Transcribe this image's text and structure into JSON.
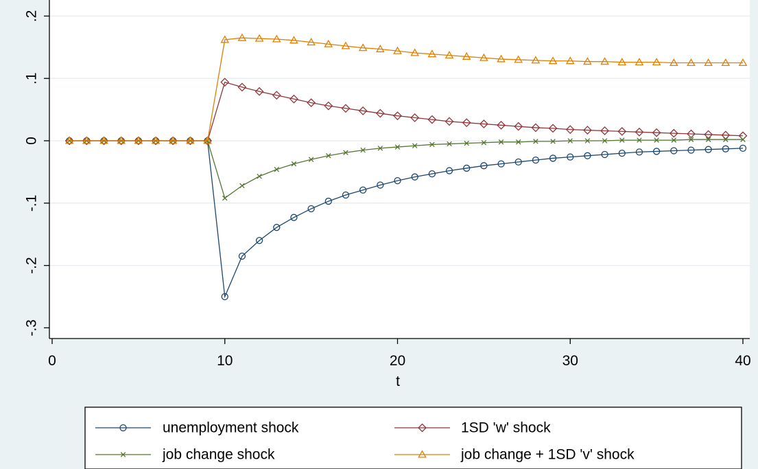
{
  "chart_data": {
    "type": "line",
    "title": "",
    "xlabel": "t",
    "ylabel": "",
    "xlim": [
      0,
      41
    ],
    "ylim": [
      -0.3,
      0.2
    ],
    "xticks": [
      0,
      10,
      20,
      30,
      40
    ],
    "xtick_labels": [
      "0",
      "10",
      "20",
      "30",
      "40"
    ],
    "yticks": [
      -0.3,
      -0.2,
      -0.1,
      0,
      0.1,
      0.2
    ],
    "ytick_labels": [
      "-.3",
      "-.2",
      "-.1",
      "0",
      ".1",
      ".2"
    ],
    "grid": "horizontal",
    "legend_position": "bottom",
    "x": [
      1,
      2,
      3,
      4,
      5,
      6,
      7,
      8,
      9,
      10,
      11,
      12,
      13,
      14,
      15,
      16,
      17,
      18,
      19,
      20,
      21,
      22,
      23,
      24,
      25,
      26,
      27,
      28,
      29,
      30,
      31,
      32,
      33,
      34,
      35,
      36,
      37,
      38,
      39,
      40
    ],
    "series": [
      {
        "name": "unemployment shock",
        "color": "#1a476f",
        "marker": "circle",
        "values": [
          0,
          0,
          0,
          0,
          0,
          0,
          0,
          0,
          0,
          -0.25,
          -0.185,
          -0.16,
          -0.139,
          -0.123,
          -0.109,
          -0.097,
          -0.087,
          -0.079,
          -0.071,
          -0.064,
          -0.058,
          -0.053,
          -0.048,
          -0.044,
          -0.04,
          -0.037,
          -0.034,
          -0.031,
          -0.028,
          -0.026,
          -0.024,
          -0.022,
          -0.02,
          -0.018,
          -0.017,
          -0.016,
          -0.015,
          -0.014,
          -0.013,
          -0.012
        ]
      },
      {
        "name": "1SD 'w' shock",
        "color": "#90353b",
        "marker": "diamond",
        "values": [
          0,
          0,
          0,
          0,
          0,
          0,
          0,
          0,
          0,
          0.094,
          0.086,
          0.079,
          0.073,
          0.067,
          0.061,
          0.056,
          0.052,
          0.048,
          0.044,
          0.04,
          0.037,
          0.034,
          0.031,
          0.029,
          0.027,
          0.025,
          0.023,
          0.021,
          0.02,
          0.018,
          0.017,
          0.016,
          0.015,
          0.014,
          0.013,
          0.012,
          0.011,
          0.01,
          0.009,
          0.008
        ]
      },
      {
        "name": "job change shock",
        "color": "#55752f",
        "marker": "x",
        "values": [
          0,
          0,
          0,
          0,
          0,
          0,
          0,
          0,
          0,
          -0.092,
          -0.072,
          -0.057,
          -0.046,
          -0.037,
          -0.03,
          -0.024,
          -0.019,
          -0.015,
          -0.012,
          -0.01,
          -0.008,
          -0.006,
          -0.005,
          -0.004,
          -0.003,
          -0.002,
          -0.002,
          -0.001,
          -0.001,
          0,
          0,
          0,
          0.001,
          0.001,
          0.001,
          0.001,
          0.002,
          0.002,
          0.002,
          0.002
        ]
      },
      {
        "name": "job change + 1SD 'v' shock",
        "color": "#e37e00",
        "marker": "triangle",
        "values": [
          0,
          0,
          0,
          0,
          0,
          0,
          0,
          0,
          0,
          0.162,
          0.165,
          0.164,
          0.163,
          0.161,
          0.158,
          0.155,
          0.152,
          0.149,
          0.147,
          0.144,
          0.141,
          0.139,
          0.137,
          0.135,
          0.133,
          0.131,
          0.13,
          0.129,
          0.128,
          0.128,
          0.127,
          0.127,
          0.126,
          0.126,
          0.126,
          0.125,
          0.125,
          0.125,
          0.125,
          0.125
        ]
      }
    ]
  }
}
